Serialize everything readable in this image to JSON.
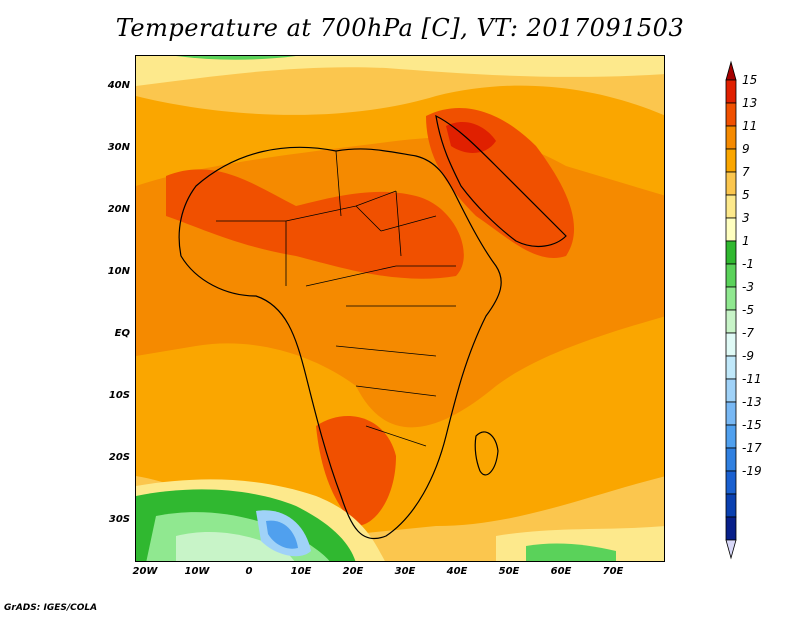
{
  "title": "Temperature at 700hPa [C], VT: 2017091503",
  "credit": "GrADS: IGES/COLA",
  "map": {
    "lat_ticks": [
      "40N",
      "30N",
      "20N",
      "10N",
      "EQ",
      "10S",
      "20S",
      "30S"
    ],
    "lon_ticks": [
      "20W",
      "10W",
      "0",
      "10E",
      "20E",
      "30E",
      "40E",
      "50E",
      "60E",
      "70E"
    ]
  },
  "colorbar": {
    "labels": [
      "15",
      "13",
      "11",
      "9",
      "7",
      "5",
      "3",
      "1",
      "-1",
      "-3",
      "-5",
      "-7",
      "-9",
      "-11",
      "-13",
      "-15",
      "-17",
      "-19"
    ],
    "colors": [
      "#a50000",
      "#e02000",
      "#f05000",
      "#f58a00",
      "#faa600",
      "#fbc64e",
      "#fde98c",
      "#ffffc0",
      "#30b830",
      "#5ad25a",
      "#90e890",
      "#c8f4c8",
      "#e0faf6",
      "#c0e8fa",
      "#a0d2f8",
      "#78b8f4",
      "#50a0ee",
      "#3080e0",
      "#1a60d0",
      "#0a40b0",
      "#08208a",
      "#d8d8f8"
    ]
  }
}
